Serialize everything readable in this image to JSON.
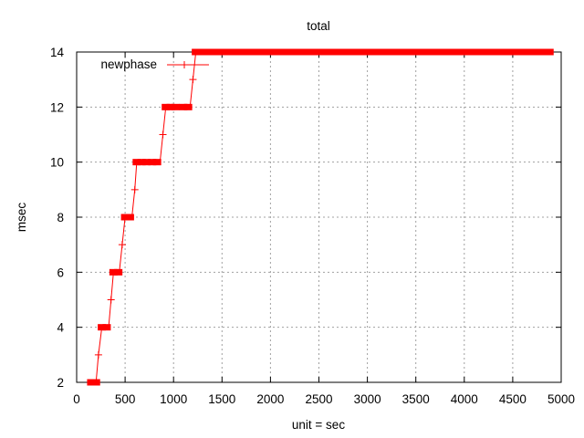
{
  "chart_data": {
    "type": "line",
    "title": "total",
    "xlabel": "unit = sec",
    "ylabel": "msec",
    "xlim": [
      0,
      5000
    ],
    "ylim": [
      2,
      14
    ],
    "xticks": [
      0,
      500,
      1000,
      1500,
      2000,
      2500,
      3000,
      3500,
      4000,
      4500,
      5000
    ],
    "yticks": [
      2,
      4,
      6,
      8,
      10,
      12,
      14
    ],
    "grid": true,
    "legend_position": "top-left",
    "series": [
      {
        "name": "newphase",
        "color": "#ff0000",
        "marker": "plus",
        "segments": [
          {
            "x0": 150,
            "x1": 200,
            "y": 2
          },
          {
            "x0": 260,
            "x1": 330,
            "y": 4
          },
          {
            "x0": 380,
            "x1": 440,
            "y": 6
          },
          {
            "x0": 500,
            "x1": 570,
            "y": 8
          },
          {
            "x0": 620,
            "x1": 730,
            "y": 10
          },
          {
            "x0": 780,
            "x1": 860,
            "y": 10
          },
          {
            "x0": 920,
            "x1": 1050,
            "y": 12
          },
          {
            "x0": 1100,
            "x1": 1170,
            "y": 12
          },
          {
            "x0": 1230,
            "x1": 4880,
            "y": 14
          }
        ],
        "transitions": [
          {
            "x": 225,
            "y": 3
          },
          {
            "x": 355,
            "y": 5
          },
          {
            "x": 470,
            "y": 7
          },
          {
            "x": 600,
            "y": 9
          },
          {
            "x": 890,
            "y": 11
          },
          {
            "x": 1200,
            "y": 13
          }
        ]
      }
    ]
  }
}
